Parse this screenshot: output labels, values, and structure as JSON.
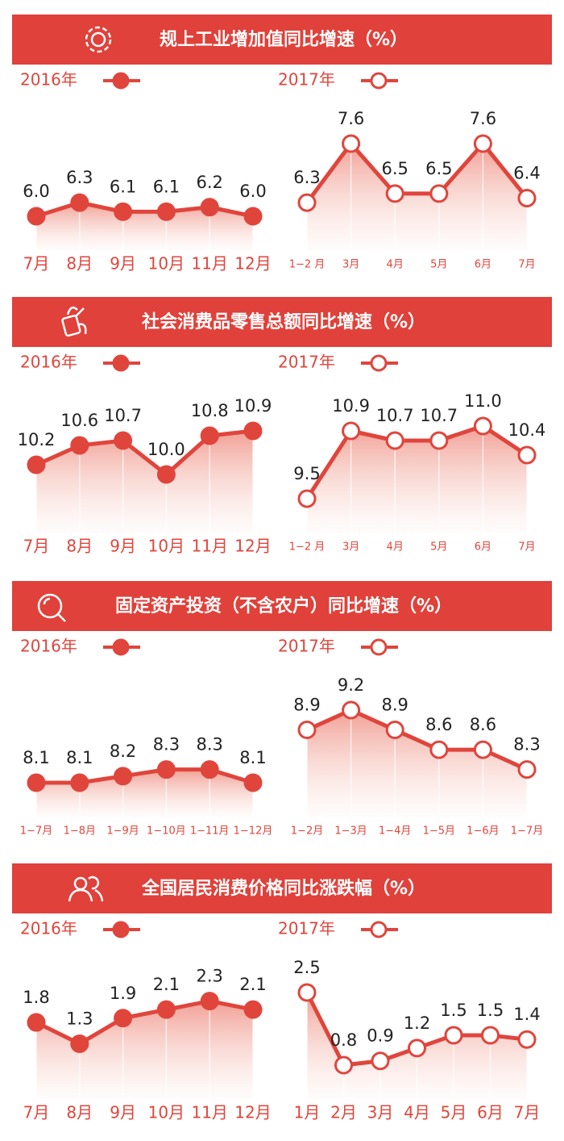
{
  "chart_data": [
    {
      "type": "line",
      "title": "规上工业增加值同比增速（%）",
      "series": [
        {
          "name": "2016年",
          "color": "#e0453c",
          "marker": "filled",
          "categories": [
            "7月",
            "8月",
            "9月",
            "10月",
            "11月",
            "12月"
          ],
          "values": [
            6.0,
            6.3,
            6.1,
            6.1,
            6.2,
            6.0
          ],
          "value_labels": [
            "6.0",
            "6.3",
            "6.1",
            "6.1",
            "6.2",
            "6.0"
          ]
        },
        {
          "name": "2017年",
          "color": "#e0453c",
          "marker": "hollow",
          "categories": [
            "1−2 月",
            "3月",
            "4月",
            "5月",
            "6月",
            "7月"
          ],
          "values": [
            6.3,
            7.6,
            6.5,
            6.5,
            7.6,
            6.4
          ],
          "value_labels": [
            "6.3",
            "7.6",
            "6.5",
            "6.5",
            "7.6",
            "6.4"
          ]
        }
      ]
    },
    {
      "type": "line",
      "title": "社会消费品零售总额同比增速（%）",
      "series": [
        {
          "name": "2016年",
          "color": "#e0453c",
          "marker": "filled",
          "categories": [
            "7月",
            "8月",
            "9月",
            "10月",
            "11月",
            "12月"
          ],
          "values": [
            10.2,
            10.6,
            10.7,
            10.0,
            10.8,
            10.9
          ],
          "value_labels": [
            "10.2",
            "10.6",
            "10.7",
            "10.0",
            "10.8",
            "10.9"
          ]
        },
        {
          "name": "2017年",
          "color": "#e0453c",
          "marker": "hollow",
          "categories": [
            "1−2 月",
            "3月",
            "4月",
            "5月",
            "6月",
            "7月"
          ],
          "values": [
            9.5,
            10.9,
            10.7,
            10.7,
            11.0,
            10.4
          ],
          "value_labels": [
            "9.5",
            "10.9",
            "10.7",
            "10.7",
            "11.0",
            "10.4"
          ]
        }
      ]
    },
    {
      "type": "line",
      "title": "固定资产投资（不含农户）同比增速（%）",
      "series": [
        {
          "name": "2016年",
          "color": "#e0453c",
          "marker": "filled",
          "categories": [
            "1−7月",
            "1−8月",
            "1−9月",
            "1−10月",
            "1−11月",
            "1−12月"
          ],
          "values": [
            8.1,
            8.1,
            8.2,
            8.3,
            8.3,
            8.1
          ],
          "value_labels": [
            "8.1",
            "8.1",
            "8.2",
            "8.3",
            "8.3",
            "8.1"
          ]
        },
        {
          "name": "2017年",
          "color": "#e0453c",
          "marker": "hollow",
          "categories": [
            "1−2月",
            "1−3月",
            "1−4月",
            "1−5月",
            "1−6月",
            "1−7月"
          ],
          "values": [
            8.9,
            9.2,
            8.9,
            8.6,
            8.6,
            8.3
          ],
          "value_labels": [
            "8.9",
            "9.2",
            "8.9",
            "8.6",
            "8.6",
            "8.3"
          ]
        }
      ]
    },
    {
      "type": "line",
      "title": "全国居民消费价格同比涨跌幅（%）",
      "series": [
        {
          "name": "2016年",
          "color": "#e0453c",
          "marker": "filled",
          "categories": [
            "7月",
            "8月",
            "9月",
            "10月",
            "11月",
            "12月"
          ],
          "values": [
            1.8,
            1.3,
            1.9,
            2.1,
            2.3,
            2.1
          ],
          "value_labels": [
            "1.8",
            "1.3",
            "1.9",
            "2.1",
            "2.3",
            "2.1"
          ]
        },
        {
          "name": "2017年",
          "color": "#e0453c",
          "marker": "hollow",
          "categories": [
            "1月",
            "2月",
            "3月",
            "4月",
            "5月",
            "6月",
            "7月"
          ],
          "values": [
            2.5,
            0.8,
            0.9,
            1.2,
            1.5,
            1.5,
            1.4
          ],
          "value_labels": [
            "2.5",
            "0.8",
            "0.9",
            "1.2",
            "1.5",
            "1.5",
            "1.4"
          ]
        }
      ]
    }
  ]
}
